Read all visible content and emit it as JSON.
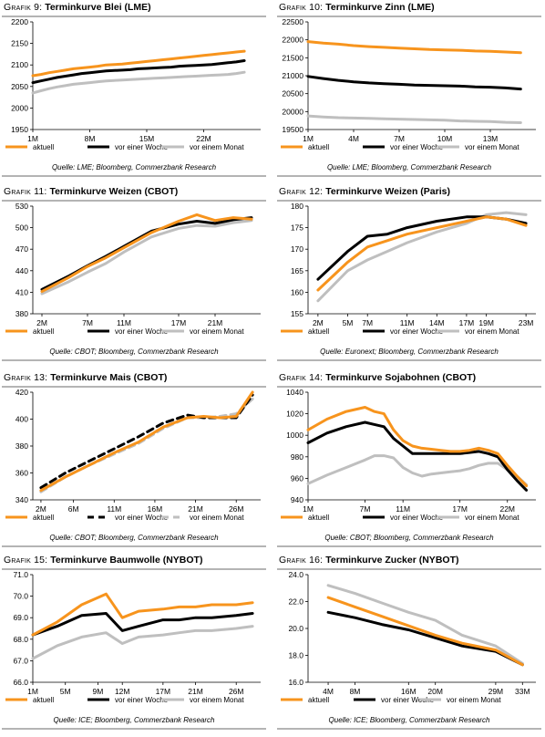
{
  "chart_data": [
    {
      "type": "line",
      "figure": "Grafik 9:",
      "title": "Terminkurve Blei (LME)",
      "x": [
        1,
        2,
        3,
        4,
        5,
        6,
        7,
        8,
        9,
        10,
        11,
        12,
        13,
        14,
        15,
        16,
        17,
        18,
        19,
        20,
        21,
        22,
        23,
        24,
        25,
        26,
        27
      ],
      "xticks": [
        {
          "v": 1,
          "label": "1M"
        },
        {
          "v": 8,
          "label": "8M"
        },
        {
          "v": 15,
          "label": "15M"
        },
        {
          "v": 22,
          "label": "22M"
        }
      ],
      "xlim": [
        1,
        29
      ],
      "ylim": [
        1950,
        2200
      ],
      "yticks": [
        1950,
        2000,
        2050,
        2100,
        2150,
        2200
      ],
      "legend_cols": [
        0,
        90,
        172
      ],
      "series": [
        {
          "name": "aktuell",
          "color": "#f7941d",
          "dash": false,
          "values": [
            2075,
            2078,
            2082,
            2085,
            2088,
            2091,
            2093,
            2095,
            2097,
            2100,
            2101,
            2102,
            2104,
            2106,
            2108,
            2110,
            2112,
            2114,
            2116,
            2118,
            2120,
            2122,
            2124,
            2126,
            2128,
            2130,
            2132
          ]
        },
        {
          "name": "vor einer Woche",
          "color": "#000000",
          "dash": false,
          "values": [
            2059,
            2063,
            2067,
            2071,
            2074,
            2077,
            2080,
            2082,
            2084,
            2086,
            2087,
            2088,
            2089,
            2091,
            2092,
            2093,
            2094,
            2095,
            2097,
            2098,
            2099,
            2100,
            2101,
            2103,
            2105,
            2107,
            2110
          ]
        },
        {
          "name": "vor einem Monat",
          "color": "#bfbfbf",
          "dash": false,
          "values": [
            2035,
            2040,
            2045,
            2049,
            2052,
            2055,
            2057,
            2059,
            2061,
            2063,
            2064,
            2065,
            2066,
            2067,
            2068,
            2069,
            2070,
            2071,
            2072,
            2073,
            2074,
            2075,
            2076,
            2077,
            2078,
            2080,
            2083
          ]
        }
      ],
      "source": "Quelle: LME; Bloomberg, Commerzbank Research"
    },
    {
      "type": "line",
      "figure": "Grafik 10:",
      "title": "Terminkurve Zinn (LME)",
      "x": [
        1,
        2,
        3,
        4,
        5,
        6,
        7,
        8,
        9,
        10,
        11,
        12,
        13,
        14,
        15
      ],
      "xticks": [
        {
          "v": 1,
          "label": "1M"
        },
        {
          "v": 4,
          "label": "4M"
        },
        {
          "v": 7,
          "label": "7M"
        },
        {
          "v": 10,
          "label": "10M"
        },
        {
          "v": 13,
          "label": "13M"
        }
      ],
      "xlim": [
        1,
        16
      ],
      "ylim": [
        19500,
        22500
      ],
      "yticks": [
        19500,
        20000,
        20500,
        21000,
        21500,
        22000,
        22500
      ],
      "legend_cols": [
        0,
        90,
        172
      ],
      "series": [
        {
          "name": "aktuell",
          "color": "#f7941d",
          "dash": false,
          "values": [
            21950,
            21910,
            21880,
            21840,
            21810,
            21790,
            21770,
            21750,
            21730,
            21720,
            21710,
            21690,
            21680,
            21660,
            21640
          ]
        },
        {
          "name": "vor einer Woche",
          "color": "#000000",
          "dash": false,
          "values": [
            20980,
            20920,
            20870,
            20830,
            20800,
            20780,
            20760,
            20740,
            20730,
            20720,
            20710,
            20690,
            20680,
            20660,
            20630
          ]
        },
        {
          "name": "vor einem Monat",
          "color": "#bfbfbf",
          "dash": false,
          "values": [
            19880,
            19850,
            19830,
            19820,
            19810,
            19800,
            19790,
            19780,
            19770,
            19760,
            19740,
            19730,
            19720,
            19700,
            19690
          ]
        }
      ],
      "source": "Quelle: LME; Bloomberg, Commerzbank Research"
    },
    {
      "type": "line",
      "figure": "Grafik 11:",
      "title": "Terminkurve Weizen (CBOT)",
      "x": [
        2,
        5,
        7,
        9,
        11,
        14,
        17,
        19,
        21,
        23,
        25
      ],
      "xticks": [
        {
          "v": 2,
          "label": "2M"
        },
        {
          "v": 7,
          "label": "7M"
        },
        {
          "v": 11,
          "label": "11M"
        },
        {
          "v": 17,
          "label": "17M"
        },
        {
          "v": 21,
          "label": "21M"
        }
      ],
      "xlim": [
        1,
        26
      ],
      "ylim": [
        380,
        530
      ],
      "yticks": [
        380,
        410,
        440,
        470,
        500,
        530
      ],
      "legend_cols": [
        0,
        90,
        172
      ],
      "series": [
        {
          "name": "aktuell",
          "color": "#f7941d",
          "dash": false,
          "values": [
            411,
            431,
            446,
            458,
            472,
            493,
            509,
            518,
            510,
            514,
            512
          ]
        },
        {
          "name": "vor einer Woche",
          "color": "#000000",
          "dash": false,
          "values": [
            414,
            433,
            447,
            460,
            474,
            495,
            505,
            509,
            506,
            511,
            514
          ]
        },
        {
          "name": "vor einem Monat",
          "color": "#bfbfbf",
          "dash": false,
          "values": [
            408,
            425,
            438,
            450,
            466,
            487,
            499,
            503,
            502,
            507,
            510
          ]
        }
      ],
      "source": "Quelle: CBOT; Bloomberg, Commerzbank Research"
    },
    {
      "type": "line",
      "figure": "Grafik 12:",
      "title": "Terminkurve Weizen (Paris)",
      "x": [
        2,
        5,
        7,
        9,
        11,
        14,
        17,
        19,
        21,
        23
      ],
      "xticks": [
        {
          "v": 2,
          "label": "2M"
        },
        {
          "v": 5,
          "label": "5M"
        },
        {
          "v": 7,
          "label": "7M"
        },
        {
          "v": 11,
          "label": "11M"
        },
        {
          "v": 14,
          "label": "14M"
        },
        {
          "v": 17,
          "label": "17M"
        },
        {
          "v": 19,
          "label": "19M"
        },
        {
          "v": 23,
          "label": "23M"
        }
      ],
      "xlim": [
        1,
        24
      ],
      "ylim": [
        155,
        180
      ],
      "yticks": [
        155,
        160,
        165,
        170,
        175,
        180
      ],
      "legend_cols": [
        0,
        90,
        172
      ],
      "series": [
        {
          "name": "aktuell",
          "color": "#f7941d",
          "dash": false,
          "values": [
            160.5,
            167.0,
            170.5,
            172.0,
            173.5,
            175.0,
            176.5,
            177.5,
            177.0,
            175.5
          ]
        },
        {
          "name": "vor einer Woche",
          "color": "#000000",
          "dash": false,
          "values": [
            163.0,
            169.5,
            173.0,
            173.5,
            175.0,
            176.5,
            177.5,
            177.5,
            177.0,
            176.0
          ]
        },
        {
          "name": "vor einem Monat",
          "color": "#bfbfbf",
          "dash": false,
          "values": [
            158.0,
            165.0,
            167.5,
            169.5,
            171.5,
            174.0,
            176.0,
            178.0,
            178.5,
            178.0
          ]
        }
      ],
      "source": "Quelle: Euronext; Bloomberg, Commerzbank Research"
    },
    {
      "type": "line",
      "figure": "Grafik 13:",
      "title": "Terminkurve Mais (CBOT)",
      "x": [
        2,
        5,
        8,
        11,
        14,
        17,
        20,
        22,
        24,
        26,
        28
      ],
      "xticks": [
        {
          "v": 2,
          "label": "2M"
        },
        {
          "v": 6,
          "label": "6M"
        },
        {
          "v": 11,
          "label": "11M"
        },
        {
          "v": 16,
          "label": "16M"
        },
        {
          "v": 21,
          "label": "21M"
        },
        {
          "v": 26,
          "label": "26M"
        }
      ],
      "xlim": [
        1,
        29
      ],
      "ylim": [
        340,
        420
      ],
      "yticks": [
        340,
        360,
        380,
        400,
        420
      ],
      "legend_cols": [
        0,
        90,
        172
      ],
      "series": [
        {
          "name": "aktuell",
          "color": "#f7941d",
          "dash": false,
          "values": [
            347,
            357,
            366,
            375,
            383,
            394,
            401,
            402,
            401,
            402,
            420
          ]
        },
        {
          "name": "vor einer Woche",
          "color": "#000000",
          "dash": true,
          "values": [
            349,
            360,
            369,
            378,
            387,
            397,
            403,
            401,
            401,
            401,
            418
          ]
        },
        {
          "name": "vor einem Monat",
          "color": "#bfbfbf",
          "dash": true,
          "values": [
            346,
            357,
            366,
            374,
            382,
            393,
            401,
            401,
            402,
            404,
            415
          ]
        }
      ],
      "source": "Quelle: CBOT; Bloomberg, Commerzbank Research"
    },
    {
      "type": "line",
      "figure": "Grafik 14:",
      "title": "Terminkurve Sojabohnen (CBOT)",
      "x": [
        1,
        3,
        5,
        7,
        8,
        9,
        10,
        11,
        12,
        13,
        14,
        15,
        16,
        17,
        18,
        19,
        20,
        21,
        22,
        23,
        24
      ],
      "xticks": [
        {
          "v": 1,
          "label": "1M"
        },
        {
          "v": 7,
          "label": "7M"
        },
        {
          "v": 11,
          "label": "11M"
        },
        {
          "v": 17,
          "label": "17M"
        },
        {
          "v": 22,
          "label": "22M"
        }
      ],
      "xlim": [
        1,
        25
      ],
      "ylim": [
        940,
        1040
      ],
      "yticks": [
        940,
        960,
        980,
        1000,
        1020,
        1040
      ],
      "legend_cols": [
        0,
        90,
        172
      ],
      "series": [
        {
          "name": "aktuell",
          "color": "#f7941d",
          "dash": false,
          "values": [
            1005,
            1015,
            1022,
            1026,
            1022,
            1020,
            1005,
            995,
            990,
            988,
            987,
            986,
            985,
            985,
            986,
            988,
            986,
            983,
            972,
            962,
            953
          ]
        },
        {
          "name": "vor einer Woche",
          "color": "#000000",
          "dash": false,
          "values": [
            993,
            1002,
            1008,
            1012,
            1010,
            1008,
            997,
            990,
            983,
            983,
            983,
            983,
            983,
            983,
            984,
            985,
            983,
            980,
            968,
            958,
            949
          ]
        },
        {
          "name": "vor einem Monat",
          "color": "#bfbfbf",
          "dash": false,
          "values": [
            955,
            963,
            970,
            977,
            981,
            981,
            979,
            970,
            965,
            962,
            964,
            965,
            966,
            967,
            969,
            972,
            974,
            974,
            968,
            962,
            954
          ]
        }
      ],
      "source": "Quelle: CBOT; Bloomberg, Commerzbank Research"
    },
    {
      "type": "line",
      "figure": "Grafik 15:",
      "title": "Terminkurve Baumwolle (NYBOT)",
      "x": [
        1,
        4,
        7,
        10,
        12,
        14,
        17,
        19,
        21,
        23,
        26,
        28
      ],
      "xticks": [
        {
          "v": 1,
          "label": "1M"
        },
        {
          "v": 5,
          "label": "5M"
        },
        {
          "v": 9,
          "label": "9M"
        },
        {
          "v": 12,
          "label": "12M"
        },
        {
          "v": 17,
          "label": "17M"
        },
        {
          "v": 21,
          "label": "21M"
        },
        {
          "v": 26,
          "label": "26M"
        }
      ],
      "xlim": [
        1,
        29
      ],
      "ylim": [
        66,
        71
      ],
      "yticks": [
        66,
        67,
        68,
        69,
        70,
        71
      ],
      "legend_cols": [
        0,
        90,
        172
      ],
      "series": [
        {
          "name": "aktuell",
          "color": "#f7941d",
          "dash": false,
          "values": [
            68.2,
            68.8,
            69.6,
            70.1,
            69.0,
            69.3,
            69.4,
            69.5,
            69.5,
            69.6,
            69.6,
            69.7
          ]
        },
        {
          "name": "vor einer Woche",
          "color": "#000000",
          "dash": false,
          "values": [
            68.2,
            68.6,
            69.1,
            69.2,
            68.4,
            68.6,
            68.9,
            68.9,
            69.0,
            69.0,
            69.1,
            69.2
          ]
        },
        {
          "name": "vor einem Monat",
          "color": "#bfbfbf",
          "dash": false,
          "values": [
            67.1,
            67.7,
            68.1,
            68.3,
            67.8,
            68.1,
            68.2,
            68.3,
            68.4,
            68.4,
            68.5,
            68.6
          ]
        }
      ],
      "source": "Quelle: ICE; Bloomberg, Commerzbank Research"
    },
    {
      "type": "line",
      "figure": "Grafik 16:",
      "title": "Terminkurve Zucker (NYBOT)",
      "x": [
        4,
        8,
        12,
        16,
        20,
        24,
        29,
        33
      ],
      "xticks": [
        {
          "v": 4,
          "label": "4M"
        },
        {
          "v": 8,
          "label": "8M"
        },
        {
          "v": 16,
          "label": "16M"
        },
        {
          "v": 20,
          "label": "20M"
        },
        {
          "v": 29,
          "label": "29M"
        },
        {
          "v": 33,
          "label": "33M"
        }
      ],
      "xlim": [
        1,
        35
      ],
      "ylim": [
        16.0,
        24.0
      ],
      "yticks": [
        16.0,
        18.0,
        20.0,
        22.0,
        24.0
      ],
      "legend_cols": [
        0,
        80,
        152
      ],
      "series": [
        {
          "name": "aktuell",
          "color": "#f7941d",
          "dash": false,
          "values": [
            22.3,
            21.6,
            20.9,
            20.2,
            19.5,
            18.9,
            18.4,
            17.3
          ]
        },
        {
          "name": "vor einer Woche",
          "color": "#000000",
          "dash": false,
          "values": [
            21.2,
            20.8,
            20.3,
            19.9,
            19.3,
            18.7,
            18.3,
            17.3
          ]
        },
        {
          "name": "vor einem Monat",
          "color": "#bfbfbf",
          "dash": false,
          "values": [
            23.2,
            22.6,
            21.9,
            21.2,
            20.6,
            19.5,
            18.7,
            17.4
          ]
        }
      ],
      "source": "Quelle: ICE; Bloomberg, Commerzbank Research"
    }
  ]
}
